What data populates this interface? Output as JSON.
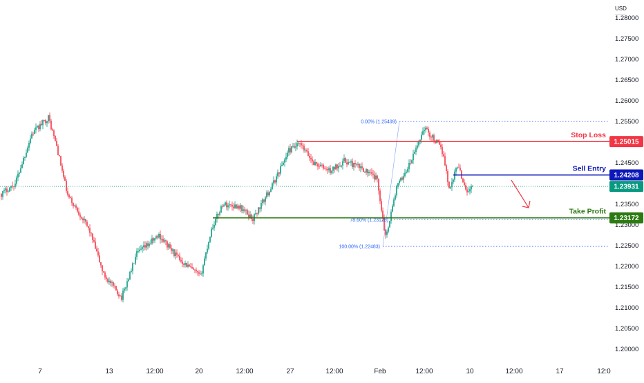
{
  "chart_data": {
    "type": "candlestick",
    "currency": "USD",
    "y_ticks": [
      "1.28000",
      "1.27500",
      "1.27000",
      "1.26500",
      "1.26000",
      "1.25500",
      "1.25000",
      "1.24500",
      "1.24000",
      "1.23500",
      "1.23000",
      "1.22500",
      "1.22000",
      "1.21500",
      "1.21000",
      "1.20500",
      "1.20000"
    ],
    "x_ticks": [
      {
        "label": "7",
        "bar": 28
      },
      {
        "label": "13",
        "bar": 78
      },
      {
        "label": "12:00",
        "bar": 111
      },
      {
        "label": "20",
        "bar": 143
      },
      {
        "label": "12:00",
        "bar": 176
      },
      {
        "label": "27",
        "bar": 209
      },
      {
        "label": "12:00",
        "bar": 241
      },
      {
        "label": "Feb",
        "bar": 274
      },
      {
        "label": "12:00",
        "bar": 306
      },
      {
        "label": "10",
        "bar": 339
      },
      {
        "label": "12:00",
        "bar": 371
      },
      {
        "label": "17",
        "bar": 404
      },
      {
        "label": "12:0",
        "bar": 436
      }
    ],
    "bar_count": 342,
    "ylim": [
      1.1975,
      1.2845
    ],
    "levels": [
      {
        "name": "Stop Loss",
        "price": "1.25015",
        "value": 1.25015,
        "color": "#f23645",
        "start_bar": 214
      },
      {
        "name": "Sell Entry",
        "price": "1.24208",
        "value": 1.24208,
        "color": "#0d18b8",
        "start_bar": 327
      },
      {
        "name": "Take Profit",
        "price": "1.23172",
        "value": 1.23172,
        "color": "#2b7a12",
        "start_bar": 153
      }
    ],
    "current_price": {
      "price": "1.23931",
      "value": 1.23931,
      "color": "#089981"
    },
    "fibonacci": [
      {
        "label": "0.00% (1.25499)",
        "value": 1.25499,
        "start_bar": 288
      },
      {
        "label": "78.60% (1.23128)",
        "value": 1.23128,
        "start_bar": 282
      },
      {
        "label": "100.00% (1.22483)",
        "value": 1.22483,
        "start_bar": 276
      }
    ],
    "anchors": [
      {
        "bar": 0,
        "price": 1.2375
      },
      {
        "bar": 10,
        "price": 1.24
      },
      {
        "bar": 22,
        "price": 1.252
      },
      {
        "bar": 34,
        "price": 1.256
      },
      {
        "bar": 40,
        "price": 1.249
      },
      {
        "bar": 48,
        "price": 1.237
      },
      {
        "bar": 58,
        "price": 1.232
      },
      {
        "bar": 64,
        "price": 1.2285
      },
      {
        "bar": 74,
        "price": 1.218
      },
      {
        "bar": 87,
        "price": 1.2125
      },
      {
        "bar": 98,
        "price": 1.223
      },
      {
        "bar": 114,
        "price": 1.2275
      },
      {
        "bar": 128,
        "price": 1.222
      },
      {
        "bar": 144,
        "price": 1.2175
      },
      {
        "bar": 152,
        "price": 1.229
      },
      {
        "bar": 160,
        "price": 1.235
      },
      {
        "bar": 172,
        "price": 1.2345
      },
      {
        "bar": 182,
        "price": 1.2315
      },
      {
        "bar": 196,
        "price": 1.2395
      },
      {
        "bar": 208,
        "price": 1.248
      },
      {
        "bar": 216,
        "price": 1.2495
      },
      {
        "bar": 226,
        "price": 1.245
      },
      {
        "bar": 238,
        "price": 1.243
      },
      {
        "bar": 248,
        "price": 1.2455
      },
      {
        "bar": 262,
        "price": 1.2435
      },
      {
        "bar": 272,
        "price": 1.241
      },
      {
        "bar": 278,
        "price": 1.227
      },
      {
        "bar": 286,
        "price": 1.239
      },
      {
        "bar": 296,
        "price": 1.245
      },
      {
        "bar": 306,
        "price": 1.2535
      },
      {
        "bar": 316,
        "price": 1.2495
      },
      {
        "bar": 320,
        "price": 1.247
      },
      {
        "bar": 324,
        "price": 1.2385
      },
      {
        "bar": 330,
        "price": 1.2445
      },
      {
        "bar": 337,
        "price": 1.238
      },
      {
        "bar": 341,
        "price": 1.2393
      }
    ]
  }
}
